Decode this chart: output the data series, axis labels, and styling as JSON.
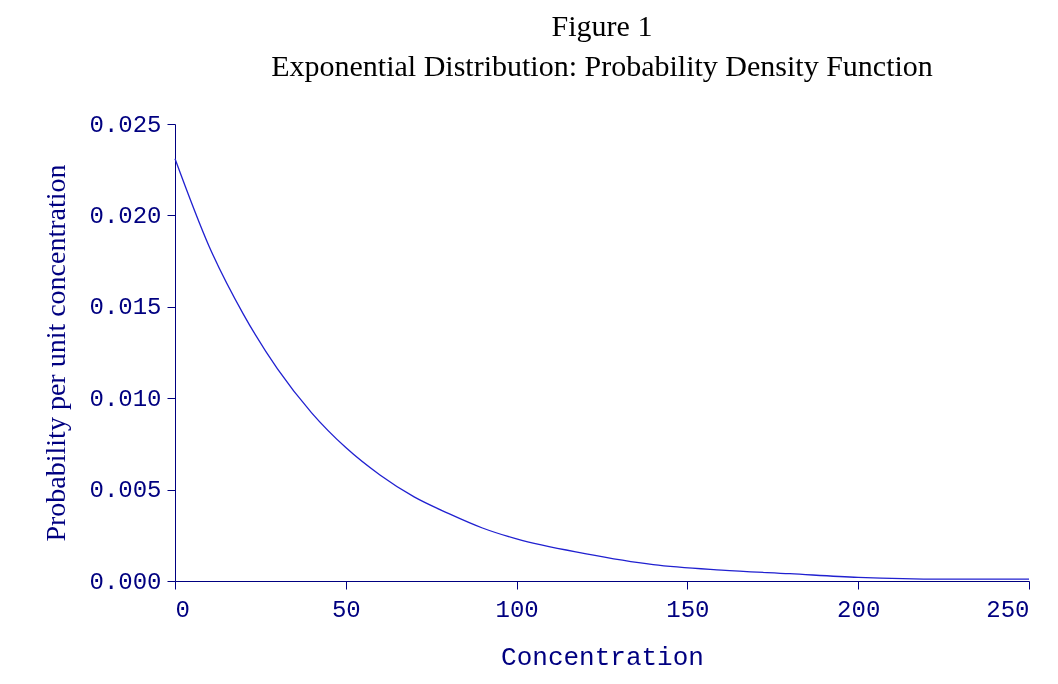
{
  "chart_data": {
    "type": "line",
    "title": "Figure 1",
    "subtitle": "Exponential Distribution: Probability Density Function",
    "xlabel": "Concentration",
    "ylabel": "Probability per unit concentration",
    "x": [
      0,
      10,
      20,
      30,
      40,
      50,
      60,
      70,
      80,
      90,
      100,
      120,
      140,
      160,
      180,
      200,
      225,
      250
    ],
    "series": [
      {
        "color": "#2020d0",
        "values": [
          0.0231,
          0.0183,
          0.0146,
          0.0116,
          0.0092,
          0.0073,
          0.0058,
          0.0046,
          0.0037,
          0.0029,
          0.0023,
          0.0015,
          0.0009,
          0.0006,
          0.0004,
          0.0002,
          0.0001,
          0.0001
        ]
      }
    ],
    "xlim": [
      0,
      250
    ],
    "xticks": [
      0,
      50,
      100,
      150,
      200,
      250
    ],
    "ylim": [
      0,
      0.025
    ],
    "yticks": [
      {
        "value": 0,
        "label": "0.000"
      },
      {
        "value": 0.005,
        "label": "0.005"
      },
      {
        "value": 0.01,
        "label": "0.010"
      },
      {
        "value": 0.015,
        "label": "0.015"
      },
      {
        "value": 0.02,
        "label": "0.020"
      },
      {
        "value": 0.025,
        "label": "0.025"
      }
    ],
    "grid": false,
    "marker": "none",
    "line_style": "solid"
  }
}
